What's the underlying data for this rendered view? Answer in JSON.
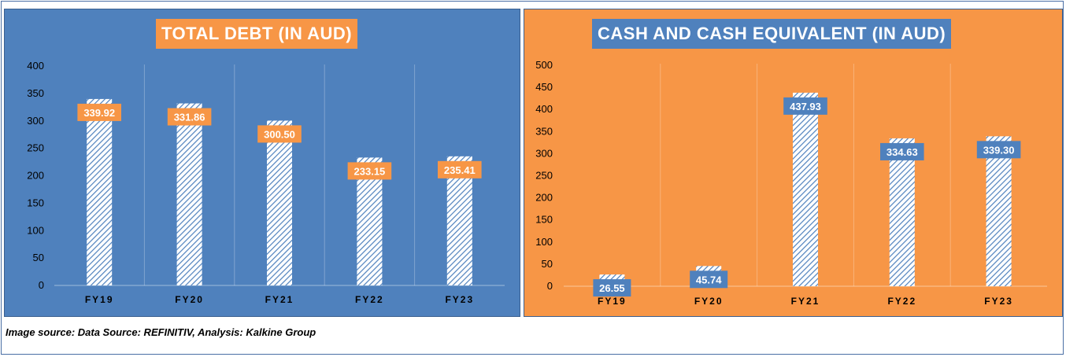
{
  "caption": "Image source: Data Source: REFINITIV, Analysis: Kalkine Group",
  "chart_data": [
    {
      "type": "bar",
      "title": "TOTAL DEBT (IN AUD)",
      "categories": [
        "FY19",
        "FY20",
        "FY21",
        "FY22",
        "FY23"
      ],
      "values": [
        339.92,
        331.86,
        300.5,
        233.15,
        235.41
      ],
      "data_labels": [
        "339.92",
        "331.86",
        "300.50",
        "233.15",
        "235.41"
      ],
      "yticks": [
        "0",
        "50",
        "100",
        "150",
        "200",
        "250",
        "300",
        "350",
        "400"
      ],
      "ylim": [
        0,
        400
      ],
      "grid": "vertical category separators",
      "colors": {
        "background": "#4f81bd",
        "label_box": "#f79646",
        "bar_hatch": "#4f81bd",
        "bar_fill": "#ffffff"
      }
    },
    {
      "type": "bar",
      "title": "CASH AND CASH EQUIVALENT (IN AUD)",
      "categories": [
        "FY19",
        "FY20",
        "FY21",
        "FY22",
        "FY23"
      ],
      "values": [
        26.55,
        45.74,
        437.93,
        334.63,
        339.3
      ],
      "data_labels": [
        "26.55",
        "45.74",
        "437.93",
        "334.63",
        "339.30"
      ],
      "yticks": [
        "0",
        "50",
        "100",
        "150",
        "200",
        "250",
        "300",
        "350",
        "400",
        "450",
        "500"
      ],
      "ylim": [
        0,
        500
      ],
      "grid": "vertical category separators",
      "colors": {
        "background": "#f79646",
        "label_box": "#4f81bd",
        "bar_hatch": "#4f81bd",
        "bar_fill": "#ffffff"
      }
    }
  ]
}
